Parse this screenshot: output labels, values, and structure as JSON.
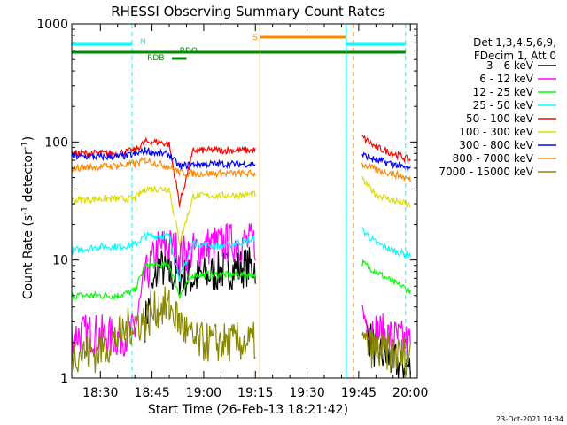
{
  "chart_data": {
    "type": "line",
    "title": "RHESSI Observing Summary Count Rates",
    "xlabel": "Start Time (26-Feb-13 18:21:42)",
    "ylabel_main": "Count Rate (s",
    "ylabel_sup1": "-1",
    "ylabel_mid": " detector",
    "ylabel_sup2": "-1",
    "ylabel_end": ")",
    "yscale": "log",
    "ylim": [
      1,
      1000
    ],
    "xlim_minutes": [
      1101.7,
      1202
    ],
    "x_ticks": [
      {
        "label": "18:30",
        "min": 1110
      },
      {
        "label": "18:45",
        "min": 1125
      },
      {
        "label": "19:00",
        "min": 1140
      },
      {
        "label": "19:15",
        "min": 1155
      },
      {
        "label": "19:30",
        "min": 1170
      },
      {
        "label": "19:45",
        "min": 1185
      },
      {
        "label": "20:00",
        "min": 1200
      }
    ],
    "y_ticks": [
      {
        "label": "1",
        "value": 1
      },
      {
        "label": "10",
        "value": 10
      },
      {
        "label": "100",
        "value": 100
      },
      {
        "label": "1000",
        "value": 1000
      }
    ],
    "legend": {
      "placement": "right",
      "header": [
        "Det 1,3,4,5,6,9,",
        "FDecim 1, Att 0"
      ]
    },
    "series": [
      {
        "name": "3 - 6 keV",
        "color": "#000000",
        "segments": [
          [
            [
              1123,
              3
            ],
            [
              1127,
              9
            ],
            [
              1130,
              7.5
            ],
            [
              1137,
              7
            ],
            [
              1145,
              8
            ],
            [
              1155,
              9
            ]
          ],
          [
            [
              1187,
              2.5
            ],
            [
              1190,
              1.7
            ],
            [
              1195,
              1.4
            ],
            [
              1200,
              1.2
            ]
          ]
        ]
      },
      {
        "name": "6 - 12 keV",
        "color": "#ff00ff",
        "segments": [
          [
            [
              1101.7,
              2.3
            ],
            [
              1108,
              2.4
            ],
            [
              1115,
              2.2
            ],
            [
              1120,
              2.5
            ],
            [
              1123,
              7
            ],
            [
              1127,
              13
            ],
            [
              1130,
              13
            ],
            [
              1135,
              11
            ],
            [
              1140,
              13
            ],
            [
              1147,
              14
            ],
            [
              1155,
              14
            ]
          ],
          [
            [
              1186,
              3.5
            ],
            [
              1190,
              2.5
            ],
            [
              1195,
              2.2
            ],
            [
              1200,
              2
            ]
          ]
        ]
      },
      {
        "name": "12 - 25 keV",
        "color": "#00ff00",
        "segments": [
          [
            [
              1101.7,
              5
            ],
            [
              1108,
              5
            ],
            [
              1115,
              5
            ],
            [
              1120,
              5.5
            ],
            [
              1123,
              9
            ],
            [
              1127,
              9
            ],
            [
              1130,
              9
            ],
            [
              1133,
              5
            ],
            [
              1137,
              7.5
            ],
            [
              1145,
              7.5
            ],
            [
              1155,
              7.5
            ]
          ],
          [
            [
              1186,
              9.5
            ],
            [
              1190,
              8
            ],
            [
              1195,
              6.5
            ],
            [
              1200,
              5.5
            ]
          ]
        ]
      },
      {
        "name": "25 - 50 keV",
        "color": "#00ffff",
        "segments": [
          [
            [
              1101.7,
              12
            ],
            [
              1110,
              13
            ],
            [
              1115,
              13
            ],
            [
              1120,
              13.5
            ],
            [
              1123,
              16
            ],
            [
              1127,
              16
            ],
            [
              1130,
              16
            ],
            [
              1133,
              7
            ],
            [
              1137,
              14
            ],
            [
              1145,
              13
            ],
            [
              1155,
              15
            ]
          ],
          [
            [
              1186,
              18
            ],
            [
              1190,
              14
            ],
            [
              1195,
              12
            ],
            [
              1200,
              11
            ]
          ]
        ]
      },
      {
        "name": "50 - 100 keV",
        "color": "#ff0000",
        "segments": [
          [
            [
              1101.7,
              80
            ],
            [
              1110,
              80
            ],
            [
              1115,
              80
            ],
            [
              1120,
              85
            ],
            [
              1123,
              100
            ],
            [
              1127,
              100
            ],
            [
              1130,
              95
            ],
            [
              1133,
              30
            ],
            [
              1137,
              85
            ],
            [
              1145,
              85
            ],
            [
              1155,
              85
            ]
          ],
          [
            [
              1186,
              110
            ],
            [
              1190,
              90
            ],
            [
              1195,
              80
            ],
            [
              1200,
              70
            ]
          ]
        ]
      },
      {
        "name": "100 - 300 keV",
        "color": "#dddd00",
        "segments": [
          [
            [
              1101.7,
              32
            ],
            [
              1110,
              33
            ],
            [
              1115,
              33
            ],
            [
              1120,
              33
            ],
            [
              1123,
              40
            ],
            [
              1127,
              40
            ],
            [
              1130,
              40
            ],
            [
              1133,
              14
            ],
            [
              1137,
              35
            ],
            [
              1145,
              35
            ],
            [
              1155,
              36
            ]
          ],
          [
            [
              1186,
              48
            ],
            [
              1190,
              36
            ],
            [
              1195,
              32
            ],
            [
              1200,
              29
            ]
          ]
        ]
      },
      {
        "name": "300 - 800 keV",
        "color": "#0000ff",
        "segments": [
          [
            [
              1101.7,
              75
            ],
            [
              1110,
              75
            ],
            [
              1115,
              75
            ],
            [
              1120,
              78
            ],
            [
              1123,
              85
            ],
            [
              1127,
              80
            ],
            [
              1130,
              78
            ],
            [
              1133,
              62
            ],
            [
              1137,
              65
            ],
            [
              1145,
              65
            ],
            [
              1155,
              65
            ]
          ],
          [
            [
              1186,
              78
            ],
            [
              1190,
              70
            ],
            [
              1195,
              65
            ],
            [
              1200,
              58
            ]
          ]
        ]
      },
      {
        "name": "800 - 7000 keV",
        "color": "#ff8800",
        "segments": [
          [
            [
              1101.7,
              60
            ],
            [
              1110,
              62
            ],
            [
              1115,
              63
            ],
            [
              1120,
              65
            ],
            [
              1123,
              70
            ],
            [
              1127,
              65
            ],
            [
              1130,
              62
            ],
            [
              1133,
              55
            ],
            [
              1137,
              54
            ],
            [
              1145,
              54
            ],
            [
              1155,
              54
            ]
          ],
          [
            [
              1186,
              65
            ],
            [
              1190,
              58
            ],
            [
              1195,
              54
            ],
            [
              1200,
              48
            ]
          ]
        ]
      },
      {
        "name": "7000 - 15000 keV",
        "color": "#888800",
        "segments": [
          [
            [
              1101.7,
              1.7
            ],
            [
              1108,
              1.6
            ],
            [
              1115,
              2.2
            ],
            [
              1120,
              3
            ],
            [
              1123,
              3
            ],
            [
              1127,
              4
            ],
            [
              1130,
              4
            ],
            [
              1133,
              3
            ],
            [
              1137,
              2
            ],
            [
              1145,
              2
            ],
            [
              1155,
              2
            ]
          ],
          [
            [
              1186,
              2
            ],
            [
              1190,
              1.7
            ],
            [
              1195,
              1.6
            ],
            [
              1200,
              1.5
            ]
          ]
        ]
      }
    ],
    "vertical_lines": [
      {
        "min": 1101.7,
        "color": "#00ffff",
        "style": "solid"
      },
      {
        "min": 1119.2,
        "color": "#00ffff",
        "style": "dashed"
      },
      {
        "min": 1156.3,
        "color": "#ff8800",
        "style": "solid"
      },
      {
        "min": 1181.3,
        "color": "#00ffff",
        "style": "solid"
      },
      {
        "min": 1183.5,
        "color": "#ff8800",
        "style": "dashed"
      },
      {
        "min": 1198.6,
        "color": "#00ffff",
        "style": "dashed"
      }
    ],
    "bars": [
      {
        "label": "N",
        "color": "#00ffff",
        "from": 1101.7,
        "to": 1119.2,
        "y": 50,
        "label_min": 1121.5,
        "label_y": 46
      },
      {
        "label": "N",
        "color": "#00ffff",
        "from": 1181.3,
        "to": 1198.6,
        "y": 50,
        "label_min": null,
        "label_y": null
      },
      {
        "label": "S",
        "color": "#ff8800",
        "from": 1156.3,
        "to": 1181.3,
        "y": 42,
        "label_min": 1154.2,
        "label_y": 41
      },
      {
        "label": "",
        "color": "#008800",
        "from": 1101.7,
        "to": 1198.6,
        "y": 59,
        "label_min": null,
        "label_y": null
      },
      {
        "label": "RDO",
        "color": "#008800",
        "from": 1132.2,
        "to": 1132.5,
        "y": 59,
        "label_min": 1133,
        "label_y": 56
      },
      {
        "label": "RDB",
        "color": "#008800",
        "from": 1130.8,
        "to": 1135.0,
        "y": 66,
        "label_min": 1123.6,
        "label_y": 64
      }
    ]
  },
  "timestamp": "23-Oct-2021 14:34"
}
